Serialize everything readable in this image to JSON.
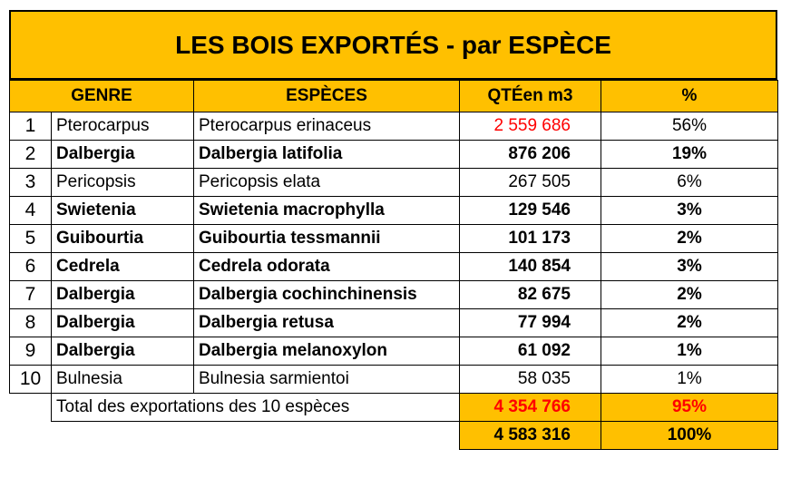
{
  "title": "LES BOIS EXPORTÉS - par ESPÈCE",
  "headers": {
    "genre": "GENRE",
    "especes": "ESPÈCES",
    "qte": "QTÉen m3",
    "pct": "%"
  },
  "rows": [
    {
      "n": "1",
      "genre": "Pterocarpus",
      "espece": "Pterocarpus erinaceus",
      "qte": "2 559 686",
      "pct": "56%"
    },
    {
      "n": "2",
      "genre": "Dalbergia",
      "espece": "Dalbergia latifolia",
      "qte": "876 206",
      "pct": "19%"
    },
    {
      "n": "3",
      "genre": "Pericopsis",
      "espece": "Pericopsis elata",
      "qte": "267 505",
      "pct": "6%"
    },
    {
      "n": "4",
      "genre": "Swietenia",
      "espece": "Swietenia macrophylla",
      "qte": "129 546",
      "pct": "3%"
    },
    {
      "n": "5",
      "genre": "Guibourtia",
      "espece": "Guibourtia tessmannii",
      "qte": "101 173",
      "pct": "2%"
    },
    {
      "n": "6",
      "genre": "Cedrela",
      "espece": "Cedrela odorata",
      "qte": "140 854",
      "pct": "3%"
    },
    {
      "n": "7",
      "genre": "Dalbergia",
      "espece": "Dalbergia cochinchinensis",
      "qte": "82 675",
      "pct": "2%"
    },
    {
      "n": "8",
      "genre": "Dalbergia",
      "espece": "Dalbergia retusa",
      "qte": "77 994",
      "pct": "2%"
    },
    {
      "n": "9",
      "genre": "Dalbergia",
      "espece": "Dalbergia melanoxylon",
      "qte": "61 092",
      "pct": "1%"
    },
    {
      "n": "10",
      "genre": "Bulnesia",
      "espece": "Bulnesia sarmientoi",
      "qte": "58 035",
      "pct": "1%"
    }
  ],
  "total10": {
    "label": "Total des exportations des 10 espèces",
    "qte": "4 354 766",
    "pct": "95%"
  },
  "total": {
    "qte": "4 583 316",
    "pct": "100%"
  },
  "colors": {
    "accent": "#FFC000",
    "highlight": "#FF0000"
  }
}
